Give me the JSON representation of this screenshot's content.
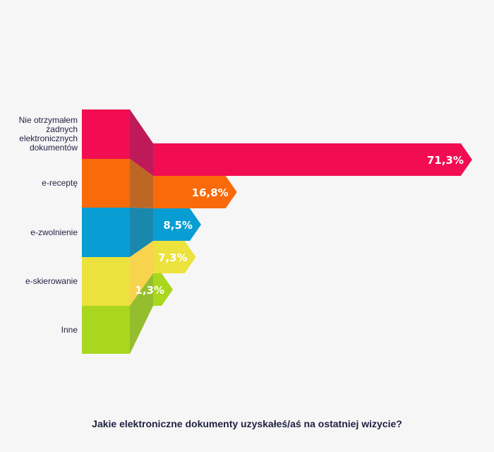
{
  "chart_data": {
    "type": "bar",
    "title": "Jakie elektroniczne dokumenty uzyskałeś/aś na ostatniej wizycie?",
    "categories": [
      "Nie otrzymałem żadnych elektronicznych dokumentów",
      "e-receptę",
      "e-zwolnienie",
      "e-skierowanie",
      "Inne"
    ],
    "category_label_lines": [
      [
        "Nie otrzymałem",
        "żadnych",
        "elektronicznych",
        "dokumentów"
      ],
      [
        "e-receptę"
      ],
      [
        "e-zwolnienie"
      ],
      [
        "e-skierowanie"
      ],
      [
        "Inne"
      ]
    ],
    "values": [
      71.3,
      16.8,
      8.5,
      7.3,
      1.3
    ],
    "value_labels": [
      "71,3%",
      "16,8%",
      "8,5%",
      "7,3%",
      "1,3%"
    ],
    "unit": "%",
    "colors": [
      "#f20d52",
      "#f96a0b",
      "#089dd3",
      "#ece23d",
      "#a8d71e"
    ],
    "side_colors": [
      "#b8074b",
      "#b85a12",
      "#067ea5",
      "#f7cf3f",
      "#8bb81c"
    ],
    "xlim": [
      0,
      71.3
    ],
    "grid": false,
    "legend": "none"
  }
}
